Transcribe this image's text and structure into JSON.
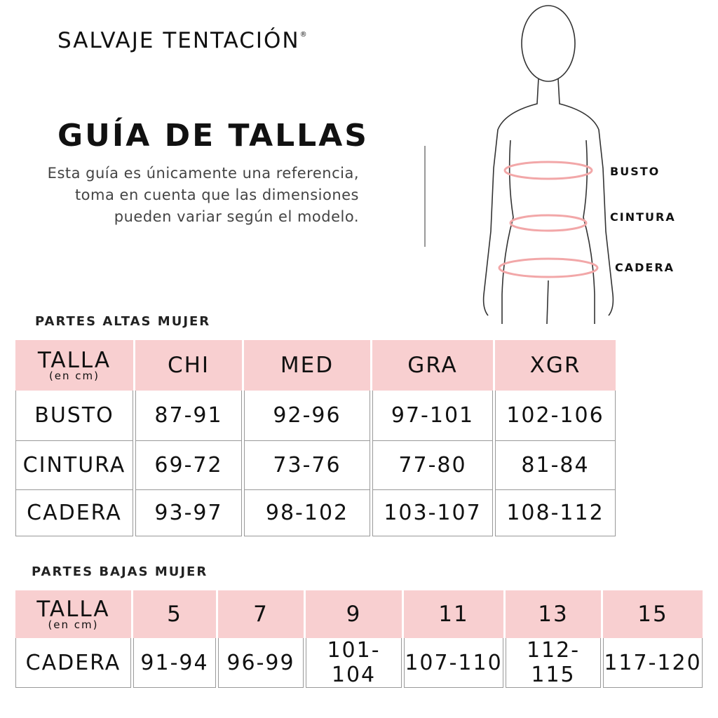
{
  "brand": {
    "name": "SALVAJE TENTACIÓN",
    "mark": "®"
  },
  "title": "GUÍA DE TALLAS",
  "description": "Esta guía es únicamente una referencia, toma en cuenta que las dimensiones pueden variar según el modelo.",
  "figure": {
    "labels": [
      "BUSTO",
      "CINTURA",
      "CADERA"
    ],
    "accent": "#f2a7a8"
  },
  "colors": {
    "header_bg": "#f8cfd0"
  },
  "upper": {
    "section": "PARTES ALTAS MUJER",
    "header": {
      "label": "TALLA",
      "unit": "(en cm)",
      "sizes": [
        "CHI",
        "MED",
        "GRA",
        "XGR"
      ]
    },
    "rows": [
      {
        "label": "BUSTO",
        "values": [
          "87-91",
          "92-96",
          "97-101",
          "102-106"
        ]
      },
      {
        "label": "CINTURA",
        "values": [
          "69-72",
          "73-76",
          "77-80",
          "81-84"
        ]
      },
      {
        "label": "CADERA",
        "values": [
          "93-97",
          "98-102",
          "103-107",
          "108-112"
        ]
      }
    ]
  },
  "lower": {
    "section": "PARTES BAJAS MUJER",
    "header": {
      "label": "TALLA",
      "unit": "(en cm)",
      "sizes": [
        "5",
        "7",
        "9",
        "11",
        "13",
        "15"
      ]
    },
    "rows": [
      {
        "label": "CADERA",
        "values": [
          "91-94",
          "96-99",
          "101-104",
          "107-110",
          "112-115",
          "117-120"
        ]
      }
    ]
  }
}
